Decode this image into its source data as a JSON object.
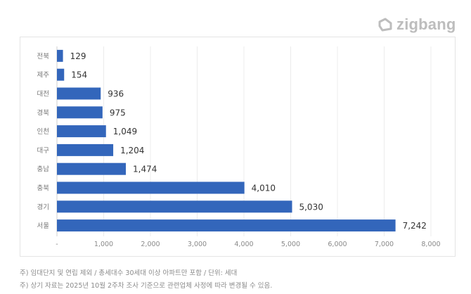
{
  "logo": {
    "text": "zigbang",
    "icon": "zigbang-logo-icon"
  },
  "chart_data": {
    "type": "bar",
    "orientation": "horizontal",
    "categories": [
      "전북",
      "제주",
      "대전",
      "경북",
      "인천",
      "대구",
      "충남",
      "충북",
      "경기",
      "서울"
    ],
    "values": [
      129,
      154,
      936,
      975,
      1049,
      1204,
      1474,
      4010,
      5030,
      7242
    ],
    "value_labels": [
      "129",
      "154",
      "936",
      "975",
      "1,049",
      "1,204",
      "1,474",
      "4,010",
      "5,030",
      "7,242"
    ],
    "xlim": [
      0,
      8000
    ],
    "x_ticks": [
      0,
      1000,
      2000,
      3000,
      4000,
      5000,
      6000,
      7000,
      8000
    ],
    "x_tick_labels": [
      "-",
      "1,000",
      "2,000",
      "3,000",
      "4,000",
      "5,000",
      "6,000",
      "7,000",
      "8,000"
    ],
    "grid": "vertical",
    "bar_color": "#3366bb",
    "title": "",
    "xlabel": "",
    "ylabel": ""
  },
  "notes": [
    "주) 임대단지 및 연립 제외 / 총세대수 30세대 이상 아파트만 포함 / 단위: 세대",
    "주) 상기 자료는 2025년 10월 2주차 조사 기준으로 관련업체 사정에 따라 변경될 수 있음."
  ]
}
